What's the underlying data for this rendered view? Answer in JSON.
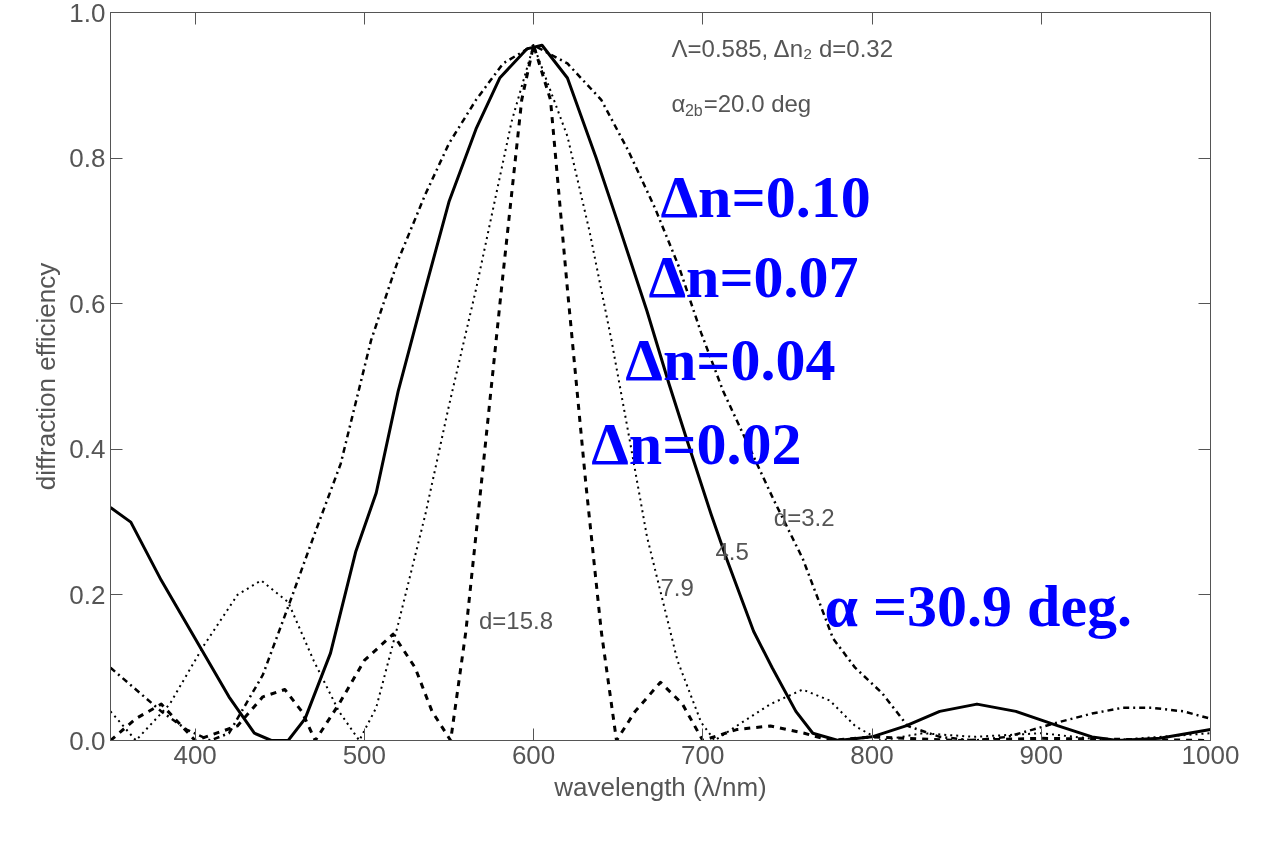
{
  "chart_data": {
    "type": "line",
    "xlabel": "wavelength (λ/nm)",
    "ylabel": "diffraction efficiency",
    "xlim": [
      350,
      1000
    ],
    "xticks": [
      400,
      500,
      600,
      700,
      800,
      900,
      1000
    ],
    "ylim": [
      0,
      1.0
    ],
    "yticks": [
      {
        "value": 0,
        "label": "0.0"
      },
      {
        "value": 0.2,
        "label": "0.2"
      },
      {
        "value": 0.4,
        "label": "0.4"
      },
      {
        "value": 0.6,
        "label": "0.6"
      },
      {
        "value": 0.8,
        "label": "0.8"
      },
      {
        "value": 1.0,
        "label": "1.0"
      }
    ],
    "grid": false,
    "marker": "none",
    "series": [
      {
        "color": "#000000",
        "line_style": "dashdot",
        "x": [
          350,
          365,
          380,
          395,
          409,
          420,
          440,
          456,
          470,
          486,
          504,
          520,
          536,
          550,
          566,
          582,
          600,
          620,
          640,
          656,
          672,
          686,
          699,
          712,
          726,
          742,
          759,
          777,
          790,
          806,
          821,
          840,
          860,
          880,
          895,
          910,
          930,
          948,
          965,
          984,
          1000
        ],
        "values": [
          0.1,
          0.07,
          0.04,
          0.015,
          0.0,
          0.01,
          0.09,
          0.19,
          0.28,
          0.38,
          0.55,
          0.66,
          0.75,
          0.82,
          0.88,
          0.93,
          0.955,
          0.93,
          0.88,
          0.81,
          0.73,
          0.65,
          0.56,
          0.48,
          0.41,
          0.33,
          0.25,
          0.14,
          0.1,
          0.065,
          0.02,
          0.005,
          0.0,
          0.005,
          0.015,
          0.025,
          0.037,
          0.045,
          0.045,
          0.04,
          0.03
        ]
      },
      {
        "color": "#000000",
        "line_style": "solid",
        "x": [
          350,
          362,
          380,
          400,
          420,
          435,
          445,
          455,
          465,
          480,
          495,
          507,
          520,
          536,
          550,
          566,
          580,
          596,
          605,
          620,
          637,
          650,
          667,
          680,
          691,
          705,
          714,
          730,
          741,
          755,
          765,
          780,
          800,
          820,
          840,
          862,
          885,
          910,
          930,
          945,
          970,
          1000
        ],
        "values": [
          0.32,
          0.3,
          0.22,
          0.14,
          0.06,
          0.01,
          0.0,
          0.0,
          0.03,
          0.12,
          0.26,
          0.34,
          0.48,
          0.62,
          0.74,
          0.84,
          0.91,
          0.95,
          0.955,
          0.91,
          0.8,
          0.71,
          0.59,
          0.49,
          0.41,
          0.31,
          0.25,
          0.15,
          0.1,
          0.04,
          0.01,
          0.0,
          0.005,
          0.02,
          0.04,
          0.05,
          0.04,
          0.02,
          0.005,
          0.0,
          0.003,
          0.015
        ]
      },
      {
        "color": "#000000",
        "line_style": "dotted",
        "x": [
          350,
          365,
          385,
          405,
          425,
          439,
          455,
          470,
          485,
          497,
          507,
          520,
          536,
          550,
          566,
          587,
          600,
          620,
          633,
          646,
          657,
          667,
          685,
          699,
          707,
          720,
          740,
          759,
          775,
          790,
          805,
          830,
          860,
          900,
          940,
          1000
        ],
        "values": [
          0.04,
          0.0,
          0.05,
          0.13,
          0.2,
          0.22,
          0.19,
          0.11,
          0.04,
          0.0,
          0.045,
          0.16,
          0.31,
          0.46,
          0.62,
          0.85,
          0.955,
          0.83,
          0.7,
          0.55,
          0.41,
          0.28,
          0.11,
          0.025,
          0.0,
          0.02,
          0.05,
          0.07,
          0.055,
          0.02,
          0.0,
          0.01,
          0.005,
          0.01,
          0.0,
          0.01
        ]
      },
      {
        "color": "#000000",
        "line_style": "dashed",
        "x": [
          350,
          365,
          380,
          400,
          425,
          440,
          453,
          463,
          471,
          485,
          500,
          517,
          530,
          540,
          551,
          560,
          569,
          581,
          593,
          600,
          610,
          620,
          631,
          640,
          649,
          660,
          675,
          688,
          700,
          720,
          740,
          760,
          775,
          800,
          850,
          900,
          1000
        ],
        "values": [
          0.0,
          0.03,
          0.05,
          0.0,
          0.02,
          0.06,
          0.07,
          0.04,
          0.0,
          0.05,
          0.11,
          0.146,
          0.1,
          0.04,
          0.0,
          0.15,
          0.35,
          0.62,
          0.88,
          0.955,
          0.88,
          0.62,
          0.35,
          0.15,
          0.0,
          0.04,
          0.08,
          0.05,
          0.0,
          0.015,
          0.02,
          0.01,
          0.0,
          0.005,
          0.0,
          0.003,
          0.0
        ]
      }
    ],
    "annotations": [
      "Λ=0.585, Δn₂ d=0.32",
      "α$_{2b}$=20.0 deg",
      "d=3.2",
      "4.5",
      "7.9",
      "d=15.8",
      "Δn=0.10",
      "Δn=0.07",
      "Δn=0.04",
      "Δn=0.02",
      "α =30.9 deg."
    ]
  }
}
